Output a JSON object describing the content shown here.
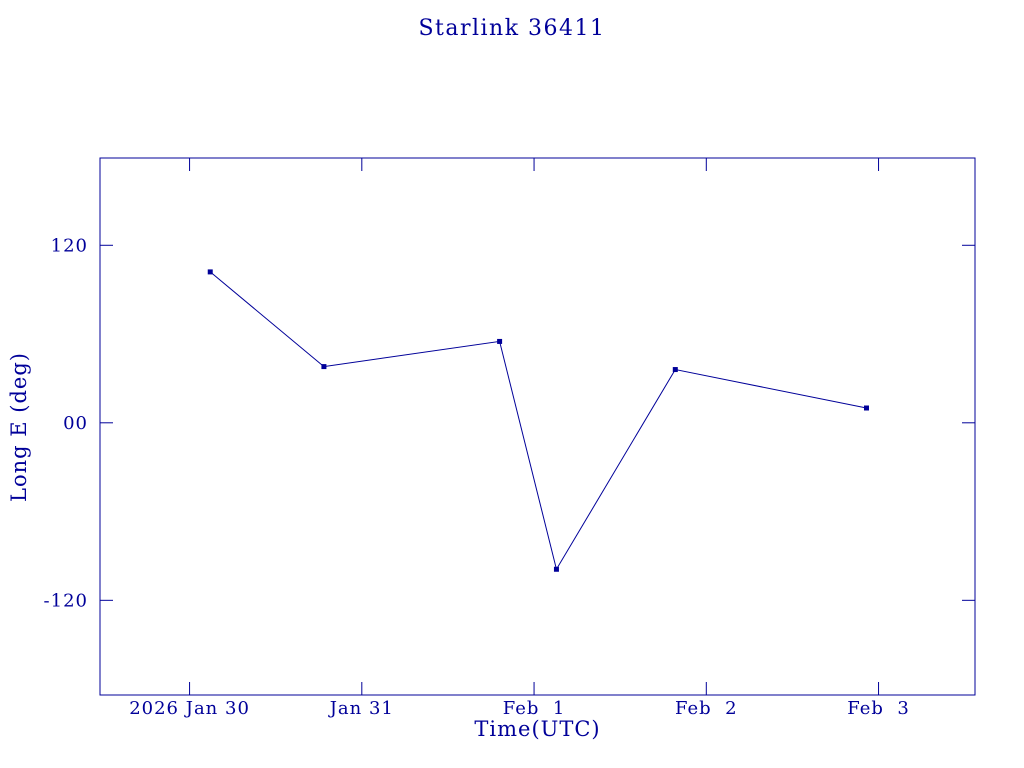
{
  "page": {
    "background": "#ffffff"
  },
  "colors": {
    "accent": "#000099"
  },
  "chart_data": {
    "type": "line",
    "title": "Starlink 36411",
    "xlabel": "Time(UTC)",
    "ylabel": "Long E (deg)",
    "grid": false,
    "legend": "none",
    "marker": "filled-square",
    "line_color": "#000099",
    "marker_color": "#000099",
    "x_unit": "days since 2026 Jan 30 00:00 UTC",
    "xlim": [
      -0.52,
      4.56
    ],
    "ylim": [
      -184,
      179
    ],
    "x_ticks": [
      {
        "value": 0,
        "label": "2026 Jan 30"
      },
      {
        "value": 1,
        "label": "Jan 31"
      },
      {
        "value": 2,
        "label": "Feb  1"
      },
      {
        "value": 3,
        "label": "Feb  2"
      },
      {
        "value": 4,
        "label": "Feb  3"
      }
    ],
    "y_ticks": [
      {
        "value": 120,
        "label": "120"
      },
      {
        "value": 0,
        "label": "00"
      },
      {
        "value": -120,
        "label": "-120"
      }
    ],
    "series": [
      {
        "name": "Long E",
        "points": [
          {
            "x": 0.12,
            "y": 102
          },
          {
            "x": 0.78,
            "y": 38
          },
          {
            "x": 1.8,
            "y": 55
          },
          {
            "x": 2.13,
            "y": -99
          },
          {
            "x": 2.82,
            "y": 36
          },
          {
            "x": 3.93,
            "y": 10
          }
        ]
      }
    ]
  }
}
